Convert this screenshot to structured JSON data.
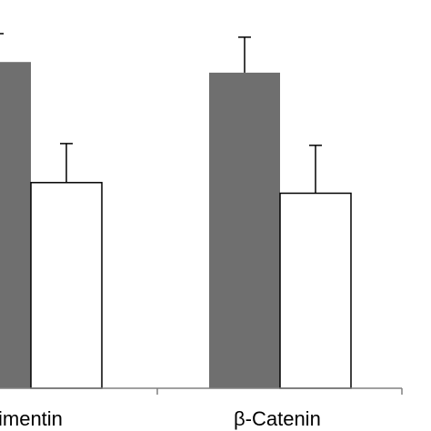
{
  "chart_data": {
    "type": "bar",
    "categories": [
      "imentin",
      "β-Catenin"
    ],
    "series": [
      {
        "values": [
          92.0,
          89.0
        ],
        "error": [
          null,
          10.0
        ],
        "color": "#6f6f6f"
      },
      {
        "values": [
          58.0,
          55.0
        ],
        "error": [
          11.0,
          13.5
        ],
        "color": "#ffffff"
      }
    ],
    "ylim": [
      0,
      100
    ],
    "grid": false,
    "legend": "none"
  }
}
